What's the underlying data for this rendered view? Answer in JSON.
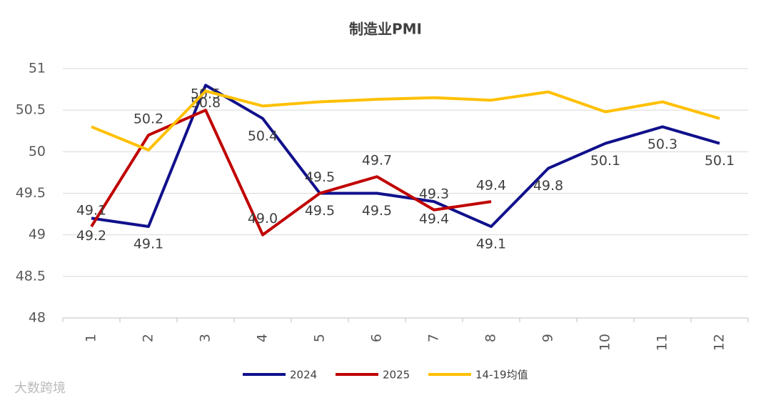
{
  "chart_data": {
    "type": "line",
    "title": "制造业PMI",
    "categories": [
      "1",
      "2",
      "3",
      "4",
      "5",
      "6",
      "7",
      "8",
      "9",
      "10",
      "11",
      "12"
    ],
    "ylim": [
      48,
      51
    ],
    "yticks": [
      48,
      48.5,
      49,
      49.5,
      50,
      50.5,
      51
    ],
    "grid": true,
    "legend": "bottom",
    "series": [
      {
        "name": "2024",
        "color": "#10108c",
        "values": [
          49.2,
          49.1,
          50.8,
          50.4,
          49.5,
          49.5,
          49.4,
          49.1,
          49.8,
          50.1,
          50.3,
          50.1
        ]
      },
      {
        "name": "2025",
        "color": "#c00000",
        "values": [
          49.1,
          50.2,
          50.5,
          49,
          49.5,
          49.7,
          49.3,
          49.4,
          null,
          null,
          null,
          null
        ],
        "value_labels": [
          "49.1",
          "50.2",
          "50.5",
          "49.0",
          "49.5",
          "49.7",
          "49.3",
          "49.4",
          null,
          null,
          null,
          null
        ]
      },
      {
        "name": "14-19均值",
        "color": "#ffc000",
        "values": [
          50.3,
          50.02,
          50.73,
          50.55,
          50.6,
          50.63,
          50.65,
          50.62,
          50.72,
          50.48,
          50.6,
          50.4
        ]
      }
    ],
    "watermark": "大数跨境"
  }
}
